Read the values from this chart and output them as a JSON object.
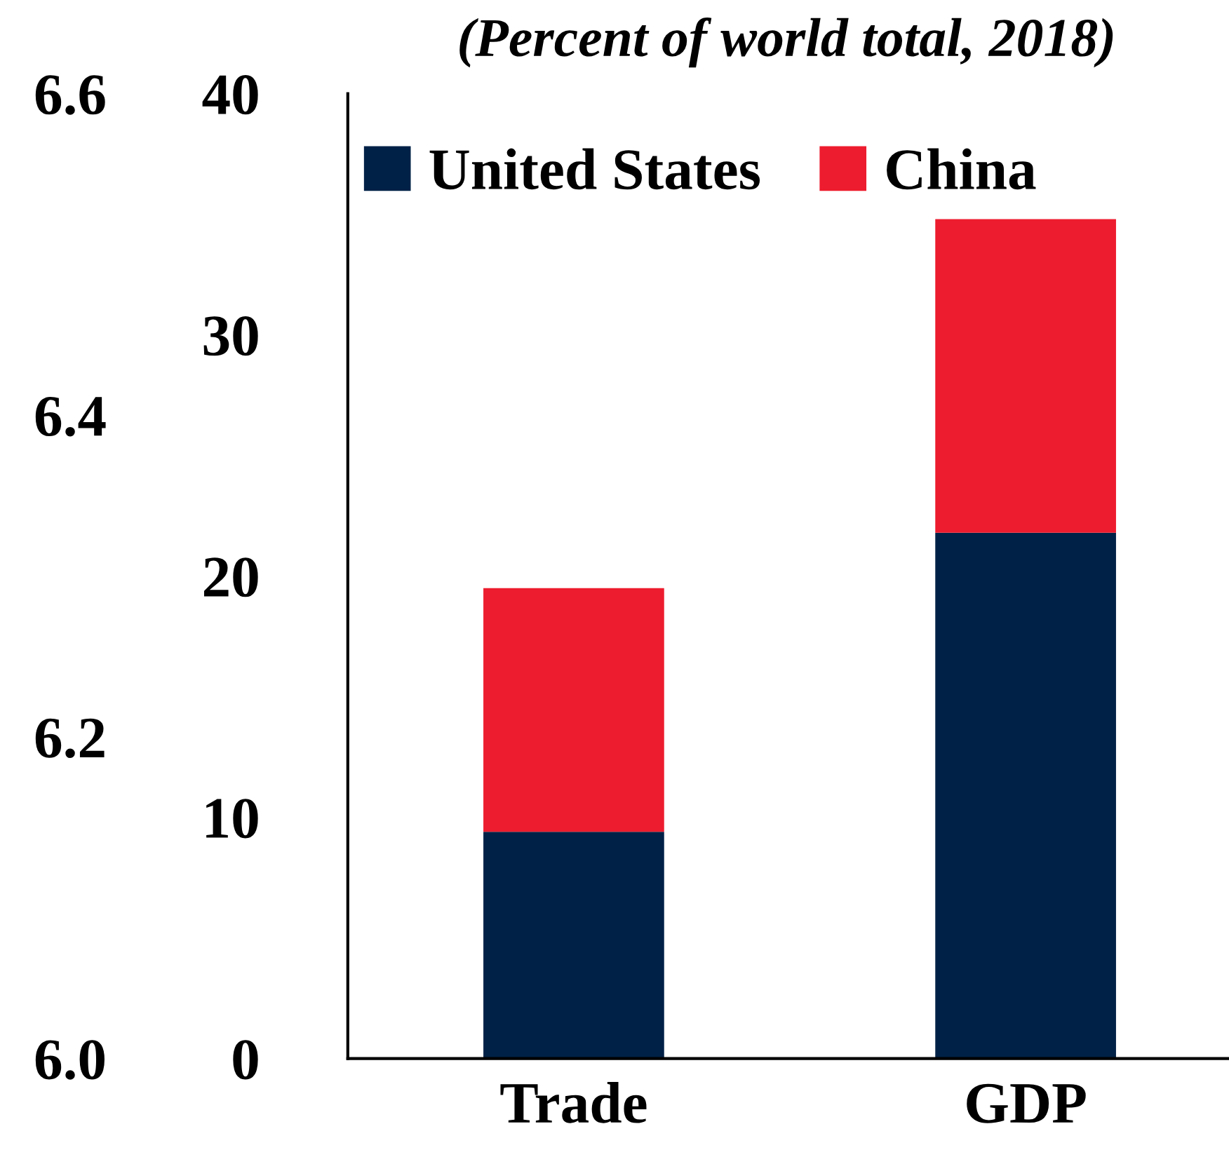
{
  "chart_data": {
    "type": "bar",
    "title": "(Percent of world total, 2018)",
    "stacked": true,
    "categories": [
      "Trade",
      "GDP"
    ],
    "series": [
      {
        "name": "United States",
        "color": "#002147",
        "values": [
          9.4,
          21.8
        ]
      },
      {
        "name": "China",
        "color": "#ed1c2e",
        "values": [
          10.1,
          13.0
        ]
      }
    ],
    "ylim": [
      0,
      40
    ],
    "yticks": [
      0,
      10,
      20,
      30,
      40
    ],
    "y2lim": [
      6.0,
      6.6
    ],
    "y2ticks": [
      {
        "value": 6.0,
        "label": "6.0"
      },
      {
        "value": 6.2,
        "label": "6.2"
      },
      {
        "value": 6.4,
        "label": "6.4"
      },
      {
        "value": 6.6,
        "label": "6.6"
      }
    ],
    "legend": "top",
    "grid": false
  }
}
